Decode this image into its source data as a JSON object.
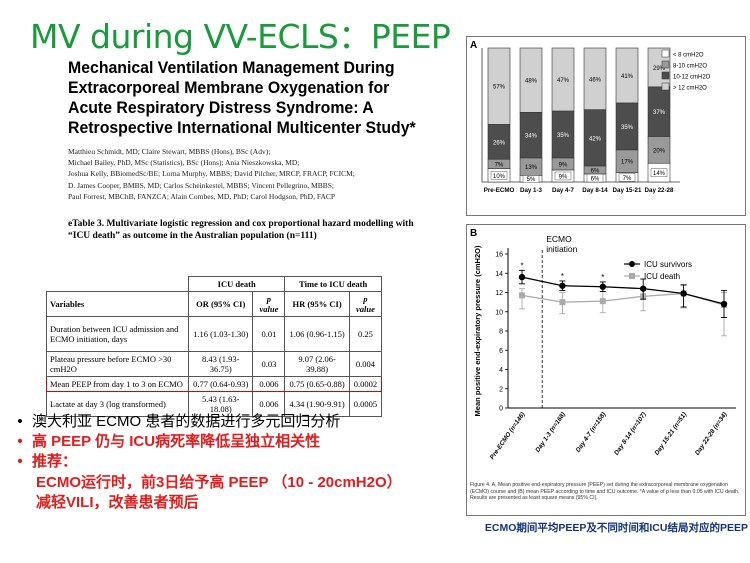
{
  "slide": {
    "title": "MV during VV-ECLS：PEEP",
    "paper_title": "Mechanical Ventilation Management During Extracorporeal Membrane Oxygenation for Acute Respiratory Distress Syndrome: A Retrospective International Multicenter Study*",
    "authors": [
      "Matthieu Schmidt, MD; Claire Stewart, MBBS (Hons), BSc (Adv);",
      "Michael Bailey, PhD, MSc (Statistics), BSc (Hons); Ania Nieszkowska, MD;",
      "Joshua Kelly, BBiomedSc/BE; Lorna Murphy, MBBS; David Pilcher, MRCP, FRACP, FCICM;",
      "D. James Cooper, BMBS, MD; Carlos Scheinkestel, MBBS; Vincent Pellegrino, MBBS;",
      "Paul Forrest, MBChB, FANZCA; Alain Combes, MD, PhD; Carol Hodgson, PhD, FACP"
    ],
    "etable_caption": "eTable 3. Multivariate logistic regression and cox proportional hazard modelling with “ICU death” as outcome in the Australian population (n=111)",
    "table": {
      "group_headers": [
        "ICU death",
        "Time to ICU death"
      ],
      "columns": [
        "Variables",
        "OR (95% CI)",
        "p value",
        "HR (95% CI)",
        "p value"
      ],
      "rows": [
        [
          "Duration between ICU admission and ECMO initiation, days",
          "1.16 (1.03-1.30)",
          "0.01",
          "1.06 (0.96-1.15)",
          "0.25"
        ],
        [
          "Plateau pressure before ECMO >30 cmH2O",
          "8.43 (1.93-36.75)",
          "0.03",
          "9.07 (2.06-39.88)",
          "0.004"
        ],
        [
          "Mean PEEP from day 1 to 3 on ECMO",
          "0.77 (0.64-0.93)",
          "0.006",
          "0.75 (0.65-0.88)",
          "0.0002"
        ],
        [
          "Lactate at day 3 (log transformed)",
          "5.43 (1.63-18.08)",
          "0.006",
          "4.34 (1.90-9.91)",
          "0.0005"
        ]
      ]
    },
    "bullets": {
      "b1": "澳大利亚 ECMO 患者的数据进行多元回归分析",
      "b2": "高 PEEP 仍与 ICU病死率降低呈独立相关性",
      "b3": "推荐：",
      "b3_line1": "ECMO运行时，前3日给予高 PEEP （10 - 20cmH2O）",
      "b3_line2": "减轻VILI，改善患者预后"
    },
    "bottom_caption": "ECMO期间平均PEEP及不同时间和ICU结局对应的PEEP",
    "colors": {
      "title_green": "#1a9a3c",
      "bullet_red": "#e21c1c",
      "caption_blue": "#14347d"
    }
  },
  "chart_data": [
    {
      "panel": "A",
      "type": "bar",
      "stacked": true,
      "categories": [
        "Pre-ECMO",
        "Day 1-3",
        "Day 4-7",
        "Day 8-14",
        "Day 15-21",
        "Day 22-28"
      ],
      "legend": [
        "< 8 cmH2O",
        "8-10 cmH2O",
        "10-12 cmH2O",
        "> 12 cmH2O"
      ],
      "legend_position": "top-right",
      "series": [
        {
          "name": "< 8 cmH2O",
          "color": "#ffffff",
          "values": [
            10,
            5,
            9,
            6,
            7,
            14
          ]
        },
        {
          "name": "8-10 cmH2O",
          "color": "#9a9a9a",
          "values": [
            7,
            13,
            9,
            6,
            17,
            20
          ]
        },
        {
          "name": "10-12 cmH2O",
          "color": "#4d4d4d",
          "values": [
            26,
            34,
            35,
            42,
            35,
            37
          ]
        },
        {
          "name": "> 12 cmH2O",
          "color": "#d0d0d0",
          "values": [
            57,
            48,
            47,
            46,
            41,
            29
          ]
        }
      ],
      "labels": [
        [
          "10%",
          "7%",
          "26%",
          "57%"
        ],
        [
          "5%",
          "13%",
          "34%",
          "48%"
        ],
        [
          "9%",
          "9%",
          "35%",
          "47%"
        ],
        [
          "6%",
          "6%",
          "42%",
          "46%"
        ],
        [
          "7%",
          "17%",
          "35%",
          "41%"
        ],
        [
          "14%",
          "20%",
          "37%",
          "29%"
        ]
      ],
      "ylim": [
        0,
        100
      ]
    },
    {
      "panel": "B",
      "type": "line",
      "categories": [
        "Pre-ECMO (n=146)",
        "Day 1-3 (n=168)",
        "Day 4-7 (n=158)",
        "Day 8-14 (n=107)",
        "Day 15-21 (n=51)",
        "Day 22-28 (n=34)"
      ],
      "ylabel": "Mean positive end-expiratory pressure (cmH2O)",
      "ylim": [
        0,
        16
      ],
      "yticks": [
        0,
        2,
        4,
        6,
        8,
        10,
        12,
        14,
        16
      ],
      "annotation": "ECMO initiation",
      "series": [
        {
          "name": "ICU survivors",
          "color": "#000000",
          "marker": "circle",
          "values": [
            13.6,
            12.7,
            12.6,
            12.4,
            11.9,
            10.8
          ],
          "err_low": [
            12.9,
            12.2,
            12.1,
            11.3,
            10.5,
            9.4
          ],
          "err_high": [
            14.3,
            13.2,
            13.1,
            13.4,
            12.8,
            12.2
          ],
          "significant": [
            true,
            true,
            true,
            false,
            false,
            false
          ]
        },
        {
          "name": "ICU death",
          "color": "#aaaaaa",
          "marker": "square",
          "values": [
            11.7,
            11.0,
            11.1,
            11.6,
            11.9,
            10.7
          ],
          "err_low": [
            10.3,
            9.8,
            9.9,
            10.1,
            10.4,
            7.5
          ],
          "err_high": [
            12.4,
            12.0,
            12.1,
            12.3,
            12.7,
            12.0
          ]
        }
      ],
      "significance_marker": "*"
    }
  ],
  "figure": {
    "panel_a_label": "A",
    "panel_b_label": "B",
    "caption": "Figure 4. A, Mean positive end-expiratory pressure (PEEP) set during the extracorporeal membrane oxygenation (ECMO) course and (B) mean PEEP according to time and ICU outcome. *A value of p less than 0.05 with ICU death. Results are presented as least square means (95% CI)."
  }
}
